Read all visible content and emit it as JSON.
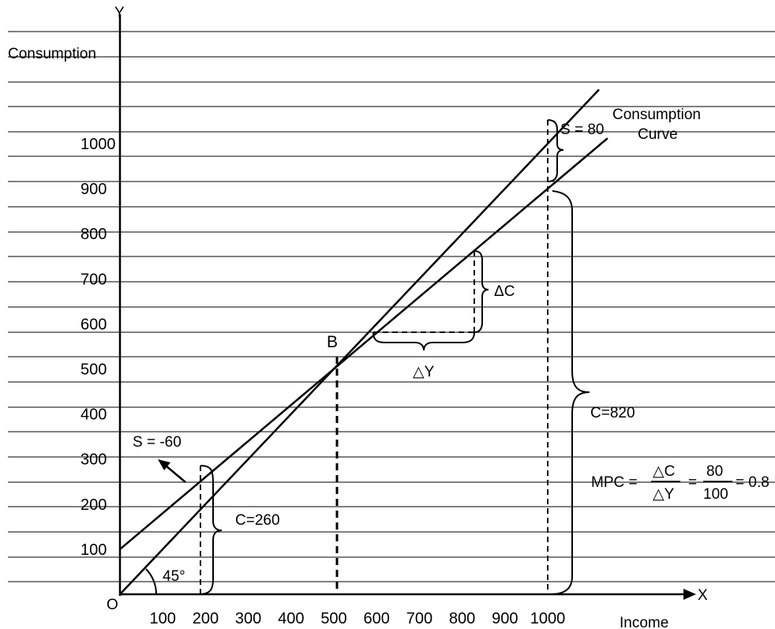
{
  "chart_data": {
    "type": "line",
    "ylabel": "Consumption",
    "xlabel": "Income",
    "x_axis_letter": "X",
    "y_axis_letter": "Y",
    "origin_label": "O",
    "xlim": [
      0,
      1000
    ],
    "ylim": [
      0,
      1000
    ],
    "x_ticks": [
      "100",
      "200",
      "300",
      "400",
      "500",
      "600",
      "700",
      "800",
      "900",
      "1000"
    ],
    "y_ticks": [
      "100",
      "200",
      "300",
      "400",
      "500",
      "600",
      "700",
      "800",
      "900",
      "1000"
    ],
    "grid": "horizontal",
    "series": [
      {
        "name": "",
        "x": [
          0,
          1000
        ],
        "y": [
          0,
          1000
        ]
      },
      {
        "name": "Consumption Curve",
        "x": [
          0,
          500,
          1000
        ],
        "y": [
          100,
          500,
          900
        ]
      }
    ],
    "annotations": {
      "point_b": "B",
      "angle": "45°",
      "saving_low": "S = -60",
      "consumption_low": "C=260",
      "saving_high": "S = 80",
      "consumption_high": "C=820",
      "delta_c": "ΔC",
      "delta_y": "△Y",
      "curve_label_line1": "Consumption",
      "curve_label_line2": "Curve",
      "mpc_prefix": "MPC =",
      "mpc_num1": "△C",
      "mpc_den1": "△Y",
      "mpc_eq": "=",
      "mpc_num2": "80",
      "mpc_den2": "100",
      "mpc_result": "= 0.8"
    }
  }
}
